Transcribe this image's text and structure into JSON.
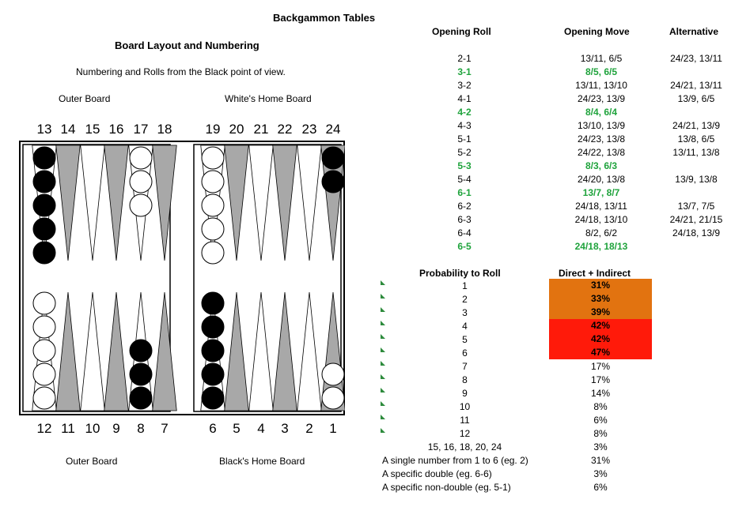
{
  "page_title": "Backgammon Tables",
  "left": {
    "heading": "Board Layout and Numbering",
    "subheading": "Numbering and Rolls from the Black point of view.",
    "top_labels": {
      "outer": "Outer Board",
      "home": "White's Home Board"
    },
    "bottom_labels": {
      "outer": "Outer Board",
      "home": "Black's Home Board"
    },
    "top_numbers": [
      "13",
      "14",
      "15",
      "16",
      "17",
      "18",
      "19",
      "20",
      "21",
      "22",
      "23",
      "24"
    ],
    "bottom_numbers": [
      "12",
      "11",
      "10",
      "9",
      "8",
      "7",
      "6",
      "5",
      "4",
      "3",
      "2",
      "1"
    ]
  },
  "board": {
    "top_checkers": [
      {
        "point_index": 0,
        "color": "black",
        "count": 5
      },
      {
        "point_index": 4,
        "color": "white",
        "count": 3
      },
      {
        "point_index": 6,
        "color": "white",
        "count": 5
      },
      {
        "point_index": 11,
        "color": "black",
        "count": 2
      }
    ],
    "bottom_checkers": [
      {
        "point_index": 0,
        "color": "white",
        "count": 5
      },
      {
        "point_index": 4,
        "color": "black",
        "count": 3
      },
      {
        "point_index": 6,
        "color": "black",
        "count": 5
      },
      {
        "point_index": 11,
        "color": "white",
        "count": 2
      }
    ],
    "colors": {
      "dark_point": "#a8a8a8",
      "light_point": "#ffffff"
    }
  },
  "openings": {
    "headers": {
      "roll": "Opening Roll",
      "move": "Opening Move",
      "alt": "Alternative"
    },
    "rows": [
      {
        "roll": "2-1",
        "move": "13/11, 6/5",
        "alt": "24/23, 13/11",
        "highlight": false
      },
      {
        "roll": "3-1",
        "move": "8/5, 6/5",
        "alt": "",
        "highlight": true
      },
      {
        "roll": "3-2",
        "move": "13/11, 13/10",
        "alt": "24/21, 13/11",
        "highlight": false
      },
      {
        "roll": "4-1",
        "move": "24/23, 13/9",
        "alt": "13/9, 6/5",
        "highlight": false
      },
      {
        "roll": "4-2",
        "move": "8/4, 6/4",
        "alt": "",
        "highlight": true
      },
      {
        "roll": "4-3",
        "move": "13/10, 13/9",
        "alt": "24/21, 13/9",
        "highlight": false
      },
      {
        "roll": "5-1",
        "move": "24/23, 13/8",
        "alt": "13/8, 6/5",
        "highlight": false
      },
      {
        "roll": "5-2",
        "move": "24/22, 13/8",
        "alt": "13/11, 13/8",
        "highlight": false
      },
      {
        "roll": "5-3",
        "move": "8/3, 6/3",
        "alt": "",
        "highlight": true
      },
      {
        "roll": "5-4",
        "move": "24/20, 13/8",
        "alt": "13/9, 13/8",
        "highlight": false
      },
      {
        "roll": "6-1",
        "move": "13/7, 8/7",
        "alt": "",
        "highlight": true
      },
      {
        "roll": "6-2",
        "move": "24/18, 13/11",
        "alt": "13/7, 7/5",
        "highlight": false
      },
      {
        "roll": "6-3",
        "move": "24/18, 13/10",
        "alt": "24/21, 21/15",
        "highlight": false
      },
      {
        "roll": "6-4",
        "move": "8/2, 6/2",
        "alt": "24/18, 13/9",
        "highlight": false
      },
      {
        "roll": "6-5",
        "move": "24/18, 18/13",
        "alt": "",
        "highlight": true
      }
    ]
  },
  "probability": {
    "headers": {
      "label": "Probability to Roll",
      "value": "Direct + Indirect"
    },
    "rows": [
      {
        "label": "1",
        "value": "31%",
        "fill": "#e27310"
      },
      {
        "label": "2",
        "value": "33%",
        "fill": "#e27310"
      },
      {
        "label": "3",
        "value": "39%",
        "fill": "#e27310"
      },
      {
        "label": "4",
        "value": "42%",
        "fill": "#ff1a0a"
      },
      {
        "label": "5",
        "value": "42%",
        "fill": "#ff1a0a"
      },
      {
        "label": "6",
        "value": "47%",
        "fill": "#ff1a0a"
      },
      {
        "label": "7",
        "value": "17%",
        "fill": ""
      },
      {
        "label": "8",
        "value": "17%",
        "fill": ""
      },
      {
        "label": "9",
        "value": "14%",
        "fill": ""
      },
      {
        "label": "10",
        "value": "8%",
        "fill": ""
      },
      {
        "label": "11",
        "value": "6%",
        "fill": ""
      },
      {
        "label": "12",
        "value": "8%",
        "fill": ""
      },
      {
        "label": "15, 16, 18, 20, 24",
        "value": "3%",
        "fill": ""
      },
      {
        "label": "A single number from 1 to 6 (eg. 2)",
        "value": "31%",
        "fill": ""
      },
      {
        "label": "A specific double (eg. 6-6)",
        "value": "3%",
        "fill": ""
      },
      {
        "label": "A specific non-double (eg. 5-1)",
        "value": "6%",
        "fill": ""
      }
    ],
    "marker_color": "#2e8b3d"
  }
}
